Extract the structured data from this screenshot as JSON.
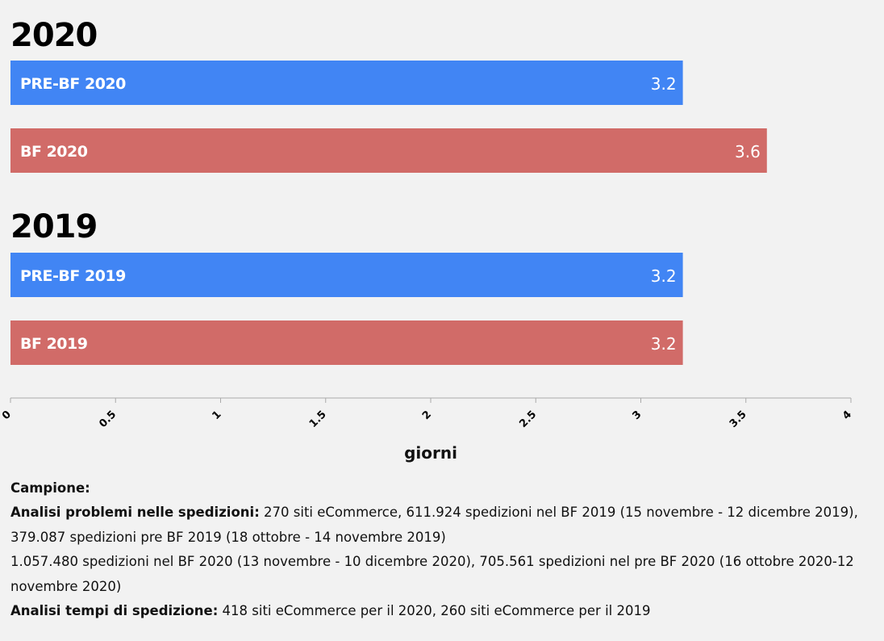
{
  "chart_data": {
    "type": "bar",
    "orientation": "horizontal",
    "groups": [
      {
        "title": "2020",
        "bars": [
          {
            "label": "PRE-BF 2020",
            "value": 3.2,
            "display": "3.2",
            "color": "#4185f4"
          },
          {
            "label": "BF 2020",
            "value": 3.6,
            "display": "3.6",
            "color": "#d16b68"
          }
        ]
      },
      {
        "title": "2019",
        "bars": [
          {
            "label": "PRE-BF 2019",
            "value": 3.2,
            "display": "3.2",
            "color": "#4185f4"
          },
          {
            "label": "BF 2019",
            "value": 3.2,
            "display": "3.2",
            "color": "#d16b68"
          }
        ]
      }
    ],
    "xlim": [
      0,
      4
    ],
    "xticks": [
      "0",
      "0.5",
      "1",
      "1.5",
      "2",
      "2.5",
      "3",
      "3.5",
      "4"
    ],
    "xlabel": "giorni",
    "grid": false,
    "legend": "none"
  },
  "notes": {
    "heading": "Campione:",
    "items": [
      {
        "label": "Analisi problemi nelle spedizioni:",
        "text": " 270 siti eCommerce, 611.924 spedizioni nel BF 2019 (15 novembre - 12 dicembre 2019), 379.087 spedizioni pre BF 2019 (18 ottobre - 14 novembre 2019)"
      },
      {
        "label": "",
        "text": "1.057.480 spedizioni nel BF 2020 (13 novembre - 10 dicembre 2020), 705.561 spedizioni nel pre BF 2020 (16 ottobre 2020-12 novembre 2020)"
      },
      {
        "label": "Analisi tempi di spedizione:",
        "text": " 418 siti eCommerce per il 2020, 260 siti eCommerce per il 2019"
      }
    ]
  }
}
